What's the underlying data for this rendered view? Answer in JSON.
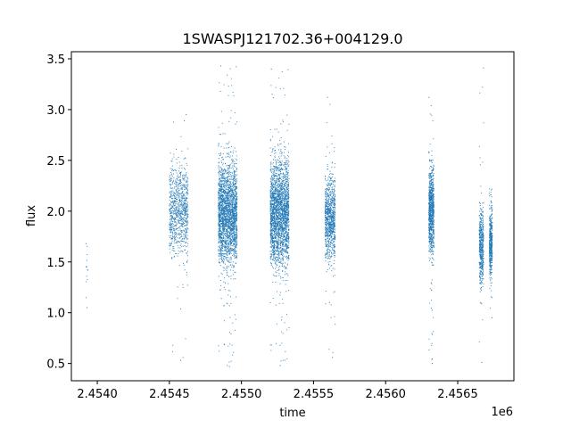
{
  "chart_data": {
    "type": "scatter",
    "title": "1SWASPJ121702.36+004129.0",
    "xlabel": "time",
    "ylabel": "flux",
    "x_offset_label": "1e6",
    "xlim": [
      2453820,
      2456890
    ],
    "ylim": [
      0.33,
      3.57
    ],
    "xticks": [
      2454000,
      2454500,
      2455000,
      2455500,
      2456000,
      2456500
    ],
    "xtick_labels": [
      "2.4540",
      "2.4545",
      "2.4550",
      "2.4555",
      "2.4560",
      "2.4565"
    ],
    "yticks": [
      0.5,
      1.0,
      1.5,
      2.0,
      2.5,
      3.0,
      3.5
    ],
    "ytick_labels": [
      "0.5",
      "1.0",
      "1.5",
      "2.0",
      "2.5",
      "3.0",
      "3.5"
    ],
    "grid": false,
    "marker_color": "#1f77b4",
    "series": [
      {
        "clusters": [
          {
            "x_range": [
              2453920,
              2453935
            ],
            "y_center": 1.4,
            "y_spread": 0.18,
            "y_min": 1.05,
            "y_max": 1.68,
            "points": 12
          },
          {
            "x_range": [
              2454500,
              2454630
            ],
            "y_center": 2.0,
            "y_spread": 0.22,
            "y_min": 0.53,
            "y_max": 2.95,
            "points": 900
          },
          {
            "x_range": [
              2454840,
              2454970
            ],
            "y_center": 1.97,
            "y_spread": 0.24,
            "y_min": 0.47,
            "y_max": 3.43,
            "points": 2400
          },
          {
            "x_range": [
              2455200,
              2455330
            ],
            "y_center": 1.98,
            "y_spread": 0.25,
            "y_min": 0.48,
            "y_max": 3.4,
            "points": 2400
          },
          {
            "x_range": [
              2455580,
              2455650
            ],
            "y_center": 1.92,
            "y_spread": 0.2,
            "y_min": 0.56,
            "y_max": 3.12,
            "points": 900
          },
          {
            "x_range": [
              2456300,
              2456335
            ],
            "y_center": 2.0,
            "y_spread": 0.2,
            "y_min": 0.5,
            "y_max": 3.12,
            "points": 900
          },
          {
            "x_range": [
              2456650,
              2456680
            ],
            "y_center": 1.65,
            "y_spread": 0.18,
            "y_min": 0.51,
            "y_max": 3.41,
            "points": 500
          },
          {
            "x_range": [
              2456720,
              2456740
            ],
            "y_center": 1.7,
            "y_spread": 0.17,
            "y_min": 0.95,
            "y_max": 2.22,
            "points": 450
          }
        ]
      }
    ]
  }
}
